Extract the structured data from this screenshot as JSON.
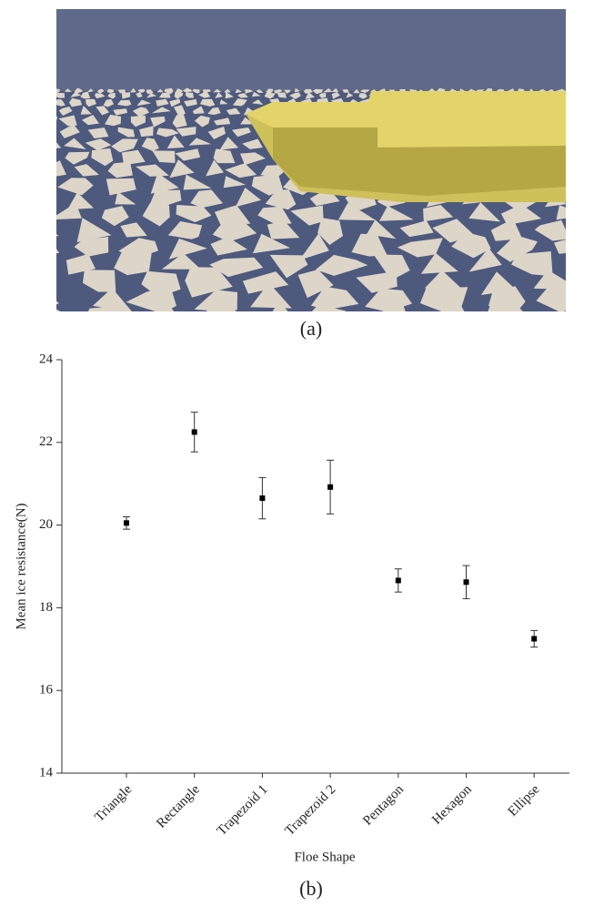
{
  "panel_a_label": "(a)",
  "chart_data": {
    "type": "errorbar",
    "panel_label": "(b)",
    "xlabel": "Floe Shape",
    "ylabel": "Mean ice resistance(N)",
    "categories": [
      "Triangle",
      "Rectangle",
      "Trapezoid 1",
      "Trapezoid 2",
      "Pentagon",
      "Hexagon",
      "Ellipse"
    ],
    "values": [
      20.05,
      22.25,
      20.65,
      20.92,
      18.66,
      18.62,
      17.25
    ],
    "errors": [
      0.15,
      0.48,
      0.5,
      0.65,
      0.28,
      0.4,
      0.2
    ],
    "color": "#000000",
    "ylim": [
      14,
      24
    ],
    "yticks": [
      14,
      16,
      18,
      20,
      22,
      24
    ]
  }
}
